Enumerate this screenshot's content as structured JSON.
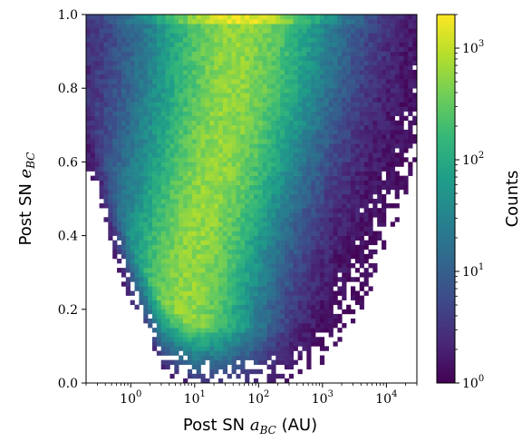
{
  "chart_data": {
    "type": "heatmap",
    "title": "",
    "xlabel": {
      "prefix": "Post SN ",
      "var": "a",
      "sub": "BC",
      "suffix": " (AU)"
    },
    "ylabel": {
      "prefix": "Post SN ",
      "var": "e",
      "sub": "BC"
    },
    "x_scale": "log",
    "xlim": [
      0.2,
      30000
    ],
    "ylim": [
      0.0,
      1.0
    ],
    "x_ticks": [
      {
        "value": 1,
        "base": "10",
        "exp": "0"
      },
      {
        "value": 10,
        "base": "10",
        "exp": "1"
      },
      {
        "value": 100,
        "base": "10",
        "exp": "2"
      },
      {
        "value": 1000,
        "base": "10",
        "exp": "3"
      },
      {
        "value": 10000,
        "base": "10",
        "exp": "4"
      }
    ],
    "y_ticks": [
      {
        "value": 0.0,
        "label": "0.0"
      },
      {
        "value": 0.2,
        "label": "0.2"
      },
      {
        "value": 0.4,
        "label": "0.4"
      },
      {
        "value": 0.6,
        "label": "0.6"
      },
      {
        "value": 0.8,
        "label": "0.8"
      },
      {
        "value": 1.0,
        "label": "1.0"
      }
    ],
    "bins": {
      "nx": 75,
      "ny": 80
    },
    "colormap": "viridis",
    "colorbar": {
      "label": "Counts",
      "scale": "log",
      "range": [
        1,
        2000
      ],
      "ticks": [
        {
          "value": 1,
          "base": "10",
          "exp": "0"
        },
        {
          "value": 10,
          "base": "10",
          "exp": "1"
        },
        {
          "value": 100,
          "base": "10",
          "exp": "2"
        },
        {
          "value": 1000,
          "base": "10",
          "exp": "3"
        }
      ]
    },
    "density_model": {
      "description_free": true,
      "ridge": [
        {
          "e": 0.05,
          "log_a": 0.9
        },
        {
          "e": 0.2,
          "log_a": 0.85
        },
        {
          "e": 0.4,
          "log_a": 1.05
        },
        {
          "e": 0.6,
          "log_a": 1.35
        },
        {
          "e": 0.8,
          "log_a": 1.6
        },
        {
          "e": 0.98,
          "log_a": 1.7
        }
      ],
      "min_e_at_log_a": [
        {
          "log_a": -0.7,
          "e": 0.62
        },
        {
          "log_a": 0.0,
          "e": 0.25
        },
        {
          "log_a": 0.5,
          "e": 0.08
        },
        {
          "log_a": 1.0,
          "e": 0.03
        },
        {
          "log_a": 2.0,
          "e": 0.02
        },
        {
          "log_a": 3.0,
          "e": 0.08
        },
        {
          "log_a": 3.8,
          "e": 0.3
        },
        {
          "log_a": 4.5,
          "e": 0.65
        }
      ]
    }
  }
}
